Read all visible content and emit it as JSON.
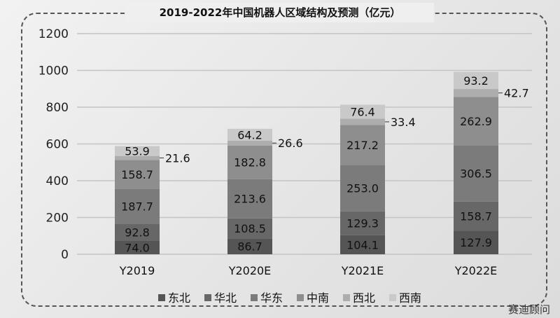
{
  "chart_data": {
    "type": "bar",
    "stacked": true,
    "title": "2019-2022年中国机器人区域结构及预测（亿元）",
    "categories": [
      "Y2019",
      "Y2020E",
      "Y2021E",
      "Y2022E"
    ],
    "ylim": [
      0,
      1200
    ],
    "yticks": [
      0,
      200,
      400,
      600,
      800,
      1000,
      1200
    ],
    "grid": true,
    "legend_position": "bottom",
    "series": [
      {
        "name": "东北",
        "color": "#555555",
        "values": [
          74.0,
          86.7,
          104.1,
          127.9
        ]
      },
      {
        "name": "华北",
        "color": "#676767",
        "values": [
          92.8,
          108.5,
          129.3,
          158.7
        ]
      },
      {
        "name": "华东",
        "color": "#7b7b7b",
        "values": [
          187.7,
          213.6,
          253.0,
          306.5
        ]
      },
      {
        "name": "中南",
        "color": "#8e8e8e",
        "values": [
          158.7,
          182.8,
          217.2,
          262.9
        ]
      },
      {
        "name": "西北",
        "color": "#adadad",
        "values": [
          21.6,
          26.6,
          33.4,
          42.7
        ]
      },
      {
        "name": "西南",
        "color": "#c9c9c9",
        "values": [
          53.9,
          64.2,
          76.4,
          93.2
        ]
      }
    ]
  },
  "credit": "赛迪顾问"
}
